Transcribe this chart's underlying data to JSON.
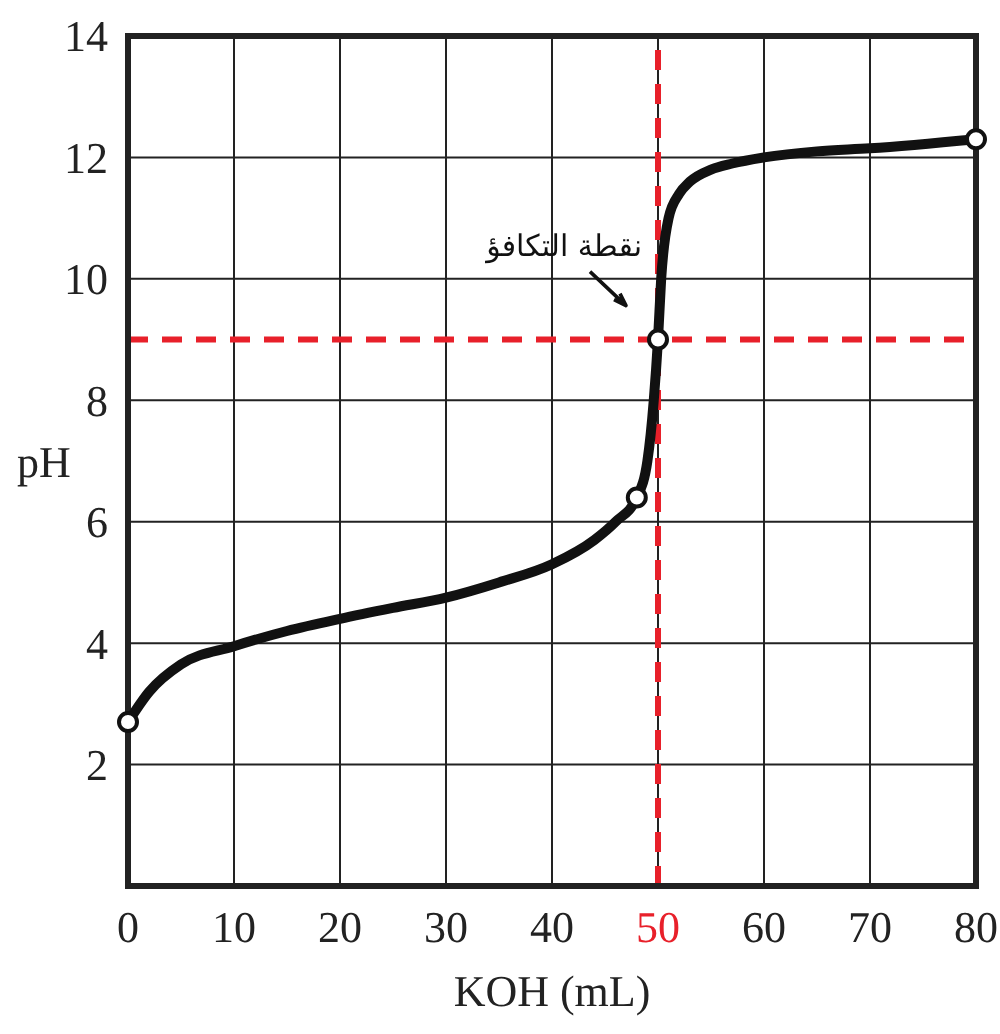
{
  "chart_data": {
    "type": "line",
    "xlabel": "KOH (mL)",
    "ylabel": "pH",
    "xlim": [
      0,
      80
    ],
    "xticks": [
      0,
      10,
      20,
      30,
      40,
      50,
      60,
      70,
      80
    ],
    "ylim": [
      0,
      14
    ],
    "yticks": [
      2,
      4,
      6,
      8,
      10,
      12,
      14
    ],
    "grid": true,
    "line_style": "solid",
    "series": [
      {
        "type": "line",
        "color": "#111111",
        "marker": "none",
        "x": [
          0,
          2,
          5,
          10,
          15,
          20,
          25,
          30,
          35,
          40,
          44,
          46,
          48,
          49,
          49.6,
          50,
          50.3,
          51,
          52,
          53,
          55,
          57,
          60,
          65,
          70,
          80
        ],
        "values": [
          2.7,
          3.2,
          3.65,
          3.95,
          4.2,
          4.4,
          4.58,
          4.75,
          5.0,
          5.3,
          5.7,
          6.0,
          6.4,
          7.0,
          8.0,
          9.0,
          10.0,
          11.0,
          11.4,
          11.6,
          11.8,
          11.9,
          12.0,
          12.1,
          12.15,
          12.3
        ]
      },
      {
        "type": "scatter",
        "color": "#111111",
        "marker": "circle",
        "x": [
          0,
          48,
          50,
          80
        ],
        "values": [
          2.7,
          6.4,
          9.0,
          12.3
        ]
      }
    ],
    "ref_lines": [
      {
        "axis": "x",
        "value": 50,
        "color": "#e8202a",
        "line_style": "dashed"
      },
      {
        "axis": "y",
        "value": 9,
        "color": "#e8202a",
        "line_style": "dashed"
      }
    ],
    "annotations": [
      {
        "text": "نقطة التكافؤ",
        "x": 50,
        "y": 9
      }
    ]
  }
}
